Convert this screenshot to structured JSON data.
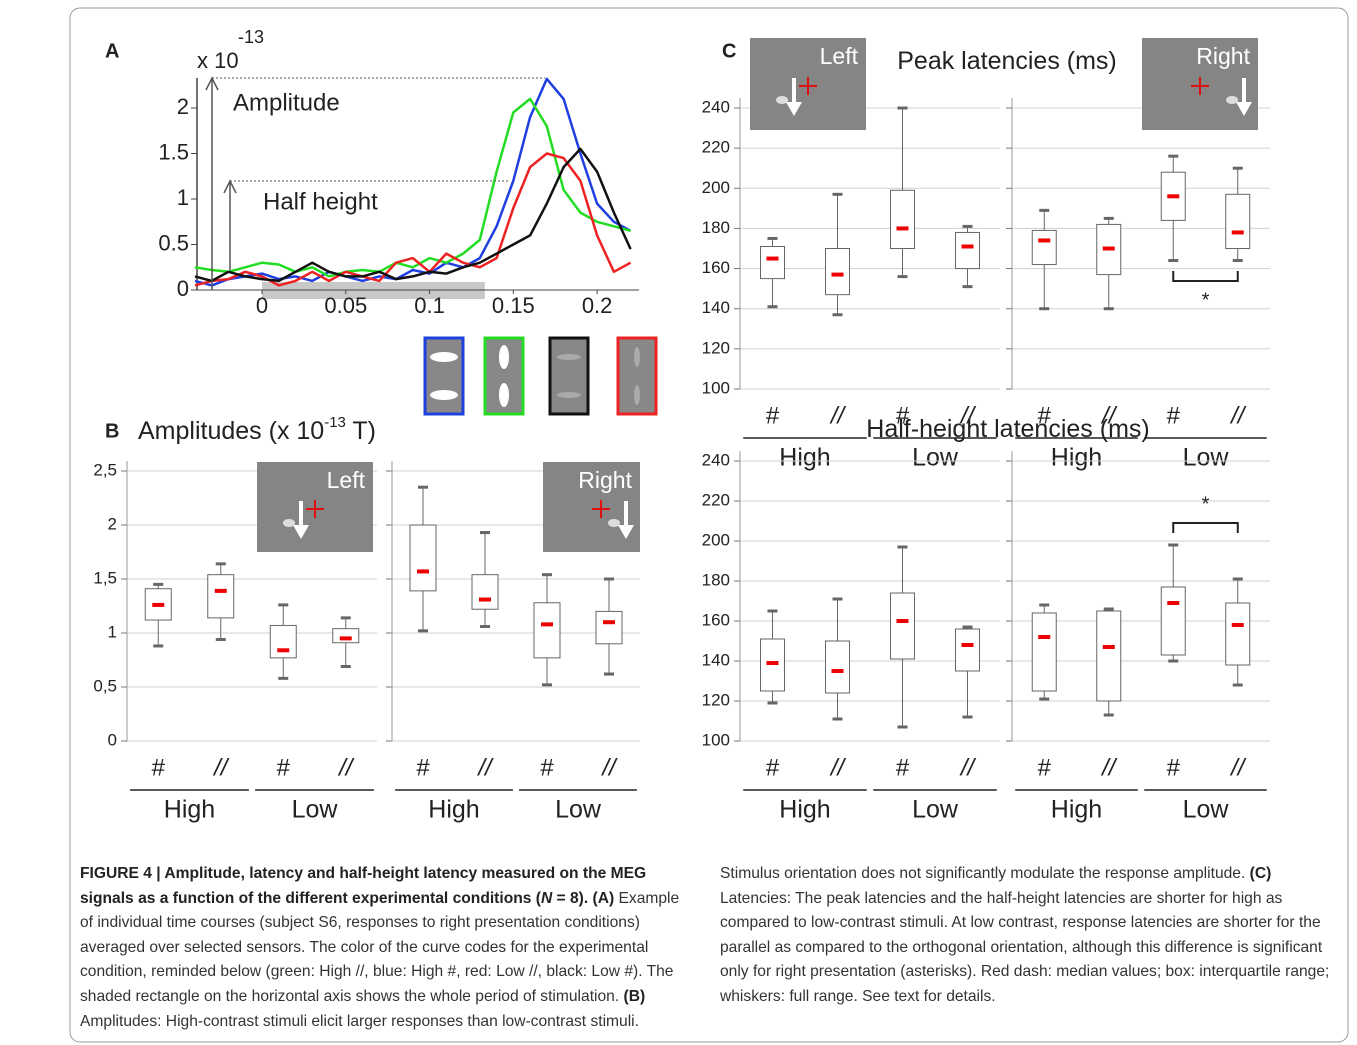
{
  "chart_data": [
    {
      "type": "line",
      "label": "A",
      "y_multiplier": "x 10",
      "y_exponent": "-13",
      "annotations": [
        "Amplitude",
        "Half height"
      ],
      "x": [
        -0.04,
        -0.03,
        -0.02,
        -0.01,
        0,
        0.01,
        0.02,
        0.03,
        0.04,
        0.05,
        0.06,
        0.07,
        0.08,
        0.09,
        0.1,
        0.11,
        0.12,
        0.13,
        0.14,
        0.15,
        0.16,
        0.17,
        0.18,
        0.19,
        0.2,
        0.21,
        0.22
      ],
      "series": [
        {
          "color": "#1f3fe0",
          "values": [
            0.1,
            0.05,
            0.12,
            0.15,
            0.18,
            0.12,
            0.15,
            0.1,
            0.2,
            0.15,
            0.1,
            0.15,
            0.12,
            0.22,
            0.18,
            0.3,
            0.25,
            0.35,
            0.7,
            1.2,
            1.9,
            2.32,
            2.1,
            1.5,
            0.95,
            0.75,
            0.65
          ]
        },
        {
          "color": "#22dd22",
          "values": [
            0.25,
            0.22,
            0.2,
            0.25,
            0.3,
            0.28,
            0.2,
            0.25,
            0.15,
            0.2,
            0.22,
            0.2,
            0.3,
            0.25,
            0.35,
            0.3,
            0.4,
            0.55,
            1.3,
            1.95,
            2.1,
            1.8,
            1.1,
            0.85,
            0.75,
            0.7,
            0.65
          ]
        },
        {
          "color": "#ee2222",
          "values": [
            0.05,
            0.1,
            0.12,
            0.2,
            0.15,
            0.05,
            0.1,
            0.2,
            0.1,
            0.2,
            0.15,
            0.1,
            0.3,
            0.35,
            0.2,
            0.4,
            0.3,
            0.25,
            0.35,
            0.9,
            1.35,
            1.5,
            1.45,
            1.2,
            0.6,
            0.2,
            0.3
          ]
        },
        {
          "color": "#111111",
          "values": [
            0.15,
            0.1,
            0.2,
            0.15,
            0.12,
            0.1,
            0.2,
            0.3,
            0.2,
            0.15,
            0.15,
            0.2,
            0.12,
            0.15,
            0.2,
            0.18,
            0.25,
            0.3,
            0.4,
            0.5,
            0.6,
            0.95,
            1.35,
            1.55,
            1.3,
            0.85,
            0.45
          ]
        }
      ],
      "stimulus_period": [
        0,
        0.133
      ],
      "xlim": [
        -0.04,
        0.225
      ],
      "ylim": [
        0,
        2.4
      ],
      "xticks": [
        0,
        0.05,
        0.1,
        0.15,
        0.2
      ],
      "yticks": [
        0,
        0.5,
        1,
        1.5,
        2
      ]
    },
    {
      "type": "box",
      "label": "B",
      "title": [
        "Amplitudes (x 10",
        "-13",
        " T)"
      ],
      "inset": "Left",
      "categories": [
        "#",
        "//",
        "#",
        "//"
      ],
      "groups": [
        "High",
        "Low"
      ],
      "boxes": [
        {
          "min": 0.88,
          "q1": 1.12,
          "median": 1.26,
          "q3": 1.41,
          "max": 1.45
        },
        {
          "min": 0.94,
          "q1": 1.14,
          "median": 1.39,
          "q3": 1.54,
          "max": 1.64
        },
        {
          "min": 0.58,
          "q1": 0.77,
          "median": 0.84,
          "q3": 1.07,
          "max": 1.26
        },
        {
          "min": 0.69,
          "q1": 0.91,
          "median": 0.95,
          "q3": 1.04,
          "max": 1.14
        }
      ],
      "ylim": [
        0,
        2.5
      ],
      "yticks": [
        0,
        {
          "value": 0.5,
          "label": "0,5"
        },
        1,
        {
          "value": 1.5,
          "label": "1,5"
        },
        2,
        {
          "value": 2.5,
          "label": "2,5"
        }
      ],
      "show_tick_labels": true
    },
    {
      "type": "box",
      "inset": "Right",
      "categories": [
        "#",
        "//",
        "#",
        "//"
      ],
      "groups": [
        "High",
        "Low"
      ],
      "boxes": [
        {
          "min": 1.02,
          "q1": 1.39,
          "median": 1.57,
          "q3": 2.0,
          "max": 2.35
        },
        {
          "min": 1.06,
          "q1": 1.22,
          "median": 1.31,
          "q3": 1.54,
          "max": 1.93
        },
        {
          "min": 0.52,
          "q1": 0.77,
          "median": 1.08,
          "q3": 1.28,
          "max": 1.54
        },
        {
          "min": 0.62,
          "q1": 0.9,
          "median": 1.1,
          "q3": 1.2,
          "max": 1.5
        }
      ],
      "ylim": [
        0,
        2.5
      ],
      "yticks": [
        0,
        0.5,
        1,
        1.5,
        2,
        2.5
      ],
      "show_tick_labels": false
    },
    {
      "type": "box",
      "label": "C",
      "title": [
        "Peak latencies (ms)"
      ],
      "inset": "Left",
      "categories": [
        "#",
        "//",
        "#",
        "//"
      ],
      "groups": [
        "High",
        "Low"
      ],
      "boxes": [
        {
          "min": 141,
          "q1": 155,
          "median": 165,
          "q3": 171,
          "max": 175
        },
        {
          "min": 137,
          "q1": 147,
          "median": 157,
          "q3": 170,
          "max": 197
        },
        {
          "min": 156,
          "q1": 170,
          "median": 180,
          "q3": 199,
          "max": 240
        },
        {
          "min": 151,
          "q1": 160,
          "median": 171,
          "q3": 178,
          "max": 181
        }
      ],
      "ylim": [
        100,
        240
      ],
      "yticks": [
        100,
        120,
        140,
        160,
        180,
        200,
        220,
        240
      ],
      "show_tick_labels": true
    },
    {
      "type": "box",
      "inset": "Right",
      "categories": [
        "#",
        "//",
        "#",
        "//"
      ],
      "groups": [
        "High",
        "Low"
      ],
      "boxes": [
        {
          "min": 140,
          "q1": 162,
          "median": 174,
          "q3": 179,
          "max": 189
        },
        {
          "min": 140,
          "q1": 157,
          "median": 170,
          "q3": 182,
          "max": 185
        },
        {
          "min": 164,
          "q1": 184,
          "median": 196,
          "q3": 208,
          "max": 216
        },
        {
          "min": 164,
          "q1": 170,
          "median": 178,
          "q3": 197,
          "max": 210
        }
      ],
      "significance": {
        "pair": [
          2,
          3
        ],
        "label": "*"
      },
      "ylim": [
        100,
        240
      ],
      "yticks": [
        100,
        120,
        140,
        160,
        180,
        200,
        220,
        240
      ],
      "show_tick_labels": false
    },
    {
      "type": "box",
      "title": [
        "Half-height latencies (ms)"
      ],
      "categories": [
        "#",
        "//",
        "#",
        "//"
      ],
      "groups": [
        "High",
        "Low"
      ],
      "boxes": [
        {
          "min": 119,
          "q1": 125,
          "median": 139,
          "q3": 151,
          "max": 165
        },
        {
          "min": 111,
          "q1": 124,
          "median": 135,
          "q3": 150,
          "max": 171
        },
        {
          "min": 107,
          "q1": 141,
          "median": 160,
          "q3": 174,
          "max": 197
        },
        {
          "min": 112,
          "q1": 135,
          "median": 148,
          "q3": 156,
          "max": 157
        }
      ],
      "ylim": [
        100,
        240
      ],
      "yticks": [
        100,
        120,
        140,
        160,
        180,
        200,
        220,
        240
      ],
      "show_tick_labels": true
    },
    {
      "type": "box",
      "categories": [
        "#",
        "//",
        "#",
        "//"
      ],
      "groups": [
        "High",
        "Low"
      ],
      "boxes": [
        {
          "min": 121,
          "q1": 125,
          "median": 152,
          "q3": 164,
          "max": 168
        },
        {
          "min": 113,
          "q1": 120,
          "median": 147,
          "q3": 165,
          "max": 166
        },
        {
          "min": 140,
          "q1": 143,
          "median": 169,
          "q3": 177,
          "max": 198
        },
        {
          "min": 128,
          "q1": 138,
          "median": 158,
          "q3": 169,
          "max": 181
        }
      ],
      "significance": {
        "pair": [
          2,
          3
        ],
        "label": "*"
      },
      "ylim": [
        100,
        240
      ],
      "yticks": [
        100,
        120,
        140,
        160,
        180,
        200,
        220,
        240
      ],
      "show_tick_labels": false
    }
  ],
  "caption": {
    "runs": [
      {
        "style": "bold",
        "text": "FIGURE 4 | Amplitude, latency and half-height latency measured on the MEG signals as a function of the different experimental conditions ("
      },
      {
        "style": "bold-italic",
        "text": "N"
      },
      {
        "style": "bold",
        "text": " = 8). (A)"
      },
      {
        "style": "normal",
        "text": " Example of individual time courses (subject S6, responses to right presentation conditions) averaged over selected sensors. The color of the curve codes for the experimental condition, reminded below (green: High //, blue: High #, red: Low //, black: Low #). The shaded rectangle on the horizontal axis shows the whole period of stimulation. "
      },
      {
        "style": "bold",
        "text": "(B)"
      },
      {
        "style": "normal",
        "text": " Amplitudes: High-contrast stimuli elicit larger responses than low-contrast stimuli. Stimulus orientation does not significantly modulate the response amplitude. "
      },
      {
        "style": "bold",
        "text": "(C)"
      },
      {
        "style": "normal",
        "text": " Latencies: The peak latencies and the half-height latencies are shorter for high as compared to low-contrast stimuli. At low contrast, response latencies are shorter for the parallel as compared to the orthogonal orientation, although this difference is significant only for right presentation (asterisks). Red dash: median values; box: interquartile range; whiskers: full range. See text for details."
      }
    ]
  }
}
